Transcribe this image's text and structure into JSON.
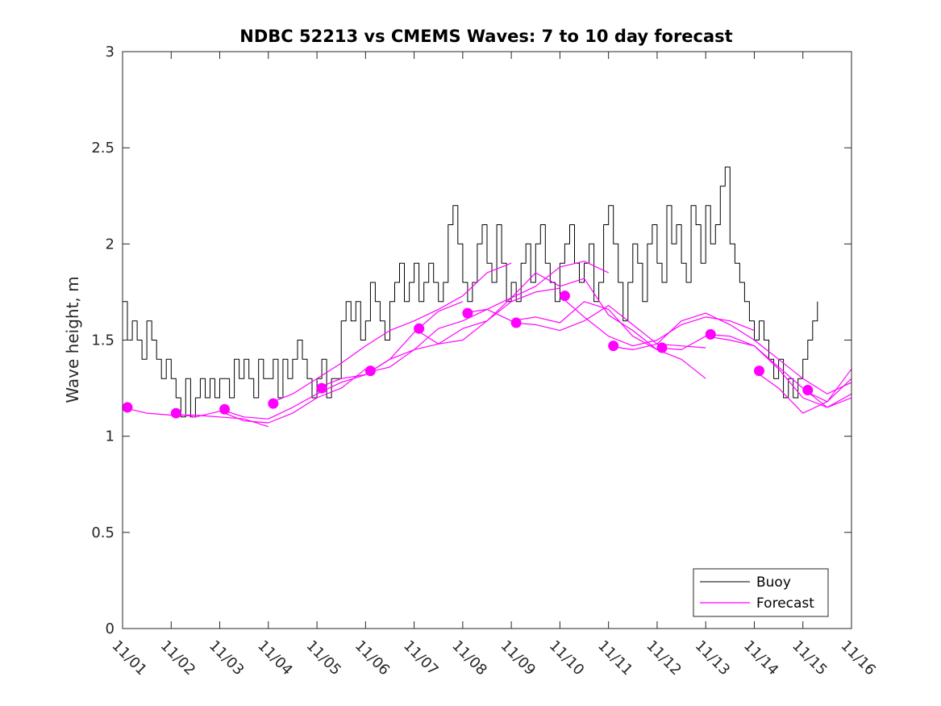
{
  "chart_data": {
    "type": "line",
    "title": "NDBC 52213 vs CMEMS Waves: 7 to 10 day forecast",
    "xlabel": "",
    "ylabel": "Wave height, m",
    "xlim": [
      0,
      15
    ],
    "ylim": [
      0,
      3
    ],
    "x_ticks": [
      0,
      1,
      2,
      3,
      4,
      5,
      6,
      7,
      8,
      9,
      10,
      11,
      12,
      13,
      14,
      15
    ],
    "x_tick_labels": [
      "11/01",
      "11/02",
      "11/03",
      "11/04",
      "11/05",
      "11/06",
      "11/07",
      "11/08",
      "11/09",
      "11/10",
      "11/11",
      "11/12",
      "11/13",
      "11/14",
      "11/15",
      "11/16"
    ],
    "y_ticks": [
      0,
      0.5,
      1,
      1.5,
      2,
      2.5,
      3
    ],
    "y_tick_labels": [
      "0",
      "0.5",
      "1",
      "1.5",
      "2",
      "2.5",
      "3"
    ],
    "x_units": "days since 11/01",
    "legend": {
      "location": "bottom-right",
      "entries": [
        "Buoy",
        "Forecast"
      ]
    },
    "colors": {
      "buoy": "#000000",
      "forecast": "#ff00ff",
      "axes": "#262626"
    },
    "series": [
      {
        "name": "Buoy",
        "style": "line",
        "x": [
          0.0,
          0.1,
          0.2,
          0.3,
          0.4,
          0.5,
          0.6,
          0.7,
          0.8,
          0.9,
          1.0,
          1.1,
          1.2,
          1.3,
          1.4,
          1.5,
          1.6,
          1.7,
          1.8,
          1.9,
          2.0,
          2.1,
          2.2,
          2.3,
          2.4,
          2.5,
          2.6,
          2.7,
          2.8,
          2.9,
          3.0,
          3.1,
          3.2,
          3.3,
          3.4,
          3.5,
          3.6,
          3.7,
          3.8,
          3.9,
          4.0,
          4.1,
          4.2,
          4.3,
          4.4,
          4.5,
          4.6,
          4.7,
          4.8,
          4.9,
          5.0,
          5.1,
          5.2,
          5.3,
          5.4,
          5.5,
          5.6,
          5.7,
          5.8,
          5.9,
          6.0,
          6.1,
          6.2,
          6.3,
          6.4,
          6.5,
          6.6,
          6.7,
          6.8,
          6.9,
          7.0,
          7.1,
          7.2,
          7.3,
          7.4,
          7.5,
          7.6,
          7.7,
          7.8,
          7.9,
          8.0,
          8.1,
          8.2,
          8.3,
          8.4,
          8.5,
          8.6,
          8.7,
          8.8,
          8.9,
          9.0,
          9.1,
          9.2,
          9.3,
          9.4,
          9.5,
          9.6,
          9.7,
          9.8,
          9.9,
          10.0,
          10.1,
          10.2,
          10.3,
          10.4,
          10.5,
          10.6,
          10.7,
          10.8,
          10.9,
          11.0,
          11.1,
          11.2,
          11.3,
          11.4,
          11.5,
          11.6,
          11.7,
          11.8,
          11.9,
          12.0,
          12.1,
          12.2,
          12.3,
          12.4,
          12.5,
          12.6,
          12.7,
          12.8,
          12.9,
          13.0,
          13.1,
          13.2,
          13.3,
          13.4,
          13.5,
          13.6,
          13.7,
          13.8,
          13.9,
          14.0,
          14.1,
          14.2,
          14.3
        ],
        "values": [
          1.7,
          1.5,
          1.6,
          1.5,
          1.4,
          1.6,
          1.5,
          1.4,
          1.3,
          1.4,
          1.3,
          1.2,
          1.1,
          1.3,
          1.1,
          1.2,
          1.3,
          1.2,
          1.3,
          1.2,
          1.3,
          1.3,
          1.2,
          1.4,
          1.3,
          1.4,
          1.3,
          1.2,
          1.4,
          1.3,
          1.3,
          1.4,
          1.2,
          1.4,
          1.3,
          1.4,
          1.5,
          1.4,
          1.3,
          1.2,
          1.3,
          1.4,
          1.2,
          1.3,
          1.3,
          1.6,
          1.7,
          1.6,
          1.7,
          1.5,
          1.6,
          1.8,
          1.7,
          1.6,
          1.5,
          1.7,
          1.8,
          1.9,
          1.7,
          1.8,
          1.9,
          1.7,
          1.8,
          1.9,
          1.8,
          1.7,
          1.8,
          2.1,
          2.2,
          2.0,
          1.8,
          1.7,
          1.8,
          2.0,
          2.1,
          1.9,
          1.8,
          2.1,
          1.9,
          1.7,
          1.8,
          1.7,
          1.9,
          2.0,
          1.8,
          2.0,
          2.1,
          1.9,
          1.8,
          1.7,
          1.9,
          2.0,
          2.1,
          1.9,
          1.8,
          1.9,
          2.0,
          1.7,
          1.8,
          2.1,
          2.2,
          2.0,
          1.8,
          1.6,
          1.8,
          2.0,
          1.9,
          1.7,
          2.0,
          2.1,
          1.9,
          1.8,
          2.2,
          2.0,
          2.1,
          1.9,
          1.8,
          2.2,
          2.1,
          1.9,
          2.2,
          2.0,
          2.1,
          2.3,
          2.4,
          2.0,
          1.9,
          1.8,
          1.7,
          1.6,
          1.5,
          1.6,
          1.5,
          1.4,
          1.3,
          1.4,
          1.2,
          1.3,
          1.2,
          1.3,
          1.4,
          1.5,
          1.6,
          1.7
        ]
      },
      {
        "name": "Forecast",
        "style": "line",
        "x": [
          0.0,
          0.5,
          1.0,
          1.5,
          2.0,
          2.5,
          3.0
        ],
        "values": [
          1.15,
          1.12,
          1.11,
          1.11,
          1.1,
          1.09,
          1.05
        ]
      },
      {
        "name": "Forecast",
        "style": "line",
        "x": [
          1.0,
          1.5,
          2.0,
          2.5,
          3.0,
          3.5,
          4.0,
          4.5,
          5.0
        ],
        "values": [
          1.12,
          1.1,
          1.13,
          1.08,
          1.07,
          1.12,
          1.2,
          1.25,
          1.35
        ]
      },
      {
        "name": "Forecast",
        "style": "line",
        "x": [
          2.0,
          2.5,
          3.0,
          3.5,
          4.0,
          4.5,
          5.0,
          5.5,
          6.0,
          6.5,
          7.0
        ],
        "values": [
          1.14,
          1.1,
          1.09,
          1.15,
          1.22,
          1.28,
          1.32,
          1.4,
          1.54,
          1.65,
          1.7
        ]
      },
      {
        "name": "Forecast",
        "style": "line",
        "x": [
          3.0,
          3.5,
          4.0,
          4.5,
          5.0,
          5.5,
          6.0,
          6.5,
          7.0,
          7.5,
          8.0
        ],
        "values": [
          1.17,
          1.22,
          1.3,
          1.38,
          1.47,
          1.55,
          1.6,
          1.66,
          1.73,
          1.85,
          1.9
        ]
      },
      {
        "name": "Forecast",
        "style": "line",
        "x": [
          4.0,
          4.5,
          5.0,
          5.5,
          6.0,
          6.5,
          7.0,
          7.5,
          8.0,
          8.5,
          9.0
        ],
        "values": [
          1.25,
          1.3,
          1.32,
          1.4,
          1.45,
          1.48,
          1.56,
          1.6,
          1.7,
          1.75,
          1.77
        ]
      },
      {
        "name": "Forecast",
        "style": "line",
        "x": [
          5.0,
          5.5,
          6.0,
          6.5,
          7.0,
          7.5,
          8.0,
          8.5,
          9.0,
          9.5,
          10.0
        ],
        "values": [
          1.33,
          1.36,
          1.45,
          1.56,
          1.6,
          1.66,
          1.72,
          1.78,
          1.88,
          1.91,
          1.85
        ]
      },
      {
        "name": "Forecast",
        "style": "line",
        "x": [
          6.0,
          6.5,
          7.0,
          7.5,
          8.0,
          8.5,
          9.0,
          9.5,
          10.0,
          10.5,
          11.0
        ],
        "values": [
          1.56,
          1.48,
          1.5,
          1.6,
          1.72,
          1.85,
          1.78,
          1.82,
          1.63,
          1.55,
          1.45
        ]
      },
      {
        "name": "Forecast",
        "style": "line",
        "x": [
          7.0,
          7.5,
          8.0,
          8.5,
          9.0,
          9.5,
          10.0,
          10.5,
          11.0,
          11.5,
          12.0
        ],
        "values": [
          1.64,
          1.66,
          1.6,
          1.62,
          1.59,
          1.7,
          1.66,
          1.52,
          1.45,
          1.4,
          1.3
        ]
      },
      {
        "name": "Forecast",
        "style": "line",
        "x": [
          8.0,
          8.5,
          9.0,
          9.5,
          10.0,
          10.5,
          11.0,
          11.5,
          12.0
        ],
        "values": [
          1.59,
          1.58,
          1.55,
          1.6,
          1.68,
          1.58,
          1.48,
          1.47,
          1.46
        ]
      },
      {
        "name": "Forecast",
        "style": "line",
        "x": [
          9.0,
          9.5,
          10.0,
          10.5,
          11.0,
          11.5,
          12.0,
          12.5,
          13.0
        ],
        "values": [
          1.73,
          1.62,
          1.52,
          1.47,
          1.5,
          1.58,
          1.62,
          1.6,
          1.55
        ]
      },
      {
        "name": "Forecast",
        "style": "line",
        "x": [
          10.0,
          10.5,
          11.0,
          11.5,
          12.0,
          12.5,
          13.0,
          13.5,
          14.0,
          14.5,
          15.0
        ],
        "values": [
          1.47,
          1.45,
          1.48,
          1.6,
          1.64,
          1.58,
          1.5,
          1.4,
          1.3,
          1.22,
          1.28
        ]
      },
      {
        "name": "Forecast",
        "style": "line",
        "x": [
          11.0,
          11.5,
          12.0,
          12.5,
          13.0,
          13.5,
          14.0,
          14.5,
          15.0
        ],
        "values": [
          1.46,
          1.45,
          1.52,
          1.5,
          1.47,
          1.35,
          1.2,
          1.15,
          1.22
        ]
      },
      {
        "name": "Forecast",
        "style": "line",
        "x": [
          12.0,
          12.5,
          13.0,
          13.5,
          14.0,
          14.5,
          15.0
        ],
        "values": [
          1.53,
          1.52,
          1.47,
          1.36,
          1.25,
          1.15,
          1.2
        ]
      },
      {
        "name": "Forecast",
        "style": "line",
        "x": [
          13.0,
          13.5,
          14.0,
          14.5,
          15.0
        ],
        "values": [
          1.34,
          1.25,
          1.12,
          1.18,
          1.3
        ]
      },
      {
        "name": "Forecast",
        "style": "line",
        "x": [
          14.0,
          14.5,
          15.0
        ],
        "values": [
          1.24,
          1.18,
          1.35
        ]
      },
      {
        "name": "Forecast",
        "style": "markers",
        "x": [
          0.1,
          1.1,
          2.1,
          3.1,
          4.1,
          5.1,
          6.1,
          7.1,
          8.1,
          9.1,
          10.1,
          11.1,
          12.1,
          13.1,
          14.1
        ],
        "values": [
          1.15,
          1.12,
          1.14,
          1.17,
          1.25,
          1.34,
          1.56,
          1.64,
          1.59,
          1.73,
          1.47,
          1.46,
          1.53,
          1.34,
          1.24
        ]
      }
    ]
  }
}
